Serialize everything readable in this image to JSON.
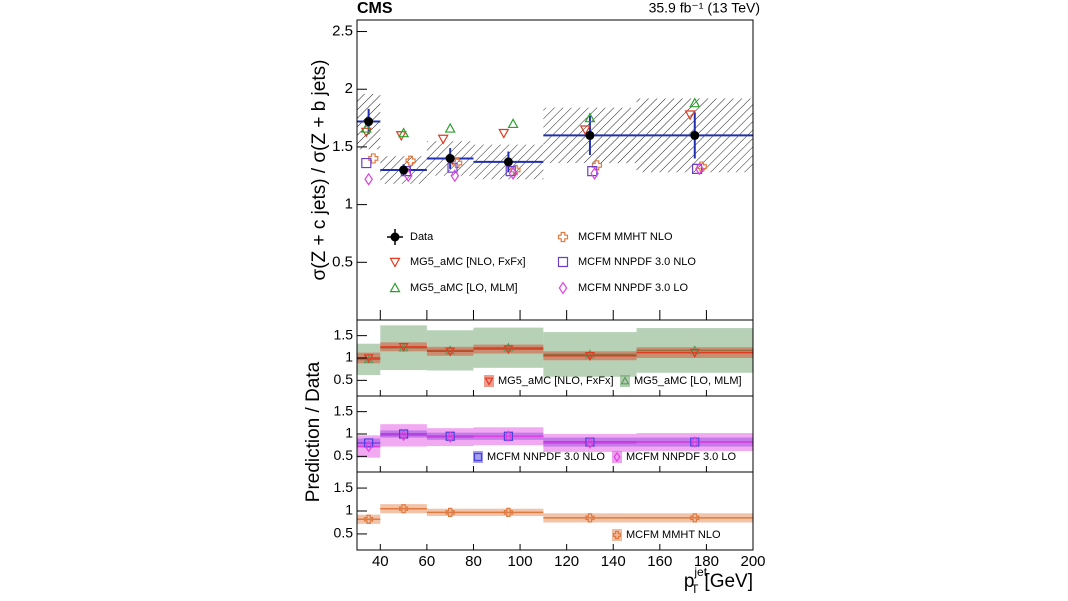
{
  "chart_data": [
    {
      "type": "step",
      "title": "CMS",
      "subtitle": "35.9 fb⁻¹ (13 TeV)",
      "y_label": "σ(Z + c jets) / σ(Z + b jets)",
      "bins": [
        30,
        40,
        60,
        80,
        110,
        150,
        200
      ],
      "xlim": [
        30,
        200
      ],
      "ylim": [
        0,
        2.6
      ],
      "yticks": [
        0.5,
        1,
        1.5,
        2,
        2.5
      ],
      "data": {
        "name": "Data",
        "color": "#000000",
        "x": [
          35,
          50,
          70,
          95,
          130,
          175
        ],
        "values": [
          1.72,
          1.3,
          1.4,
          1.37,
          1.6,
          1.6
        ],
        "errors": [
          0.11,
          0.05,
          0.09,
          0.09,
          0.17,
          0.2
        ],
        "syst_errors": [
          0.24,
          0.12,
          0.15,
          0.15,
          0.24,
          0.32
        ]
      },
      "series": [
        {
          "name": "MG5_aMC [NLO, FxFx]",
          "color": "#e03a20",
          "marker": "triangle-down",
          "x": [
            34,
            49,
            67,
            93,
            128,
            173
          ],
          "values": [
            1.63,
            1.6,
            1.57,
            1.62,
            1.65,
            1.78
          ]
        },
        {
          "name": "MG5_aMC [LO, MLM]",
          "color": "#2ca02c",
          "marker": "triangle-up",
          "x": [
            34,
            50,
            70,
            97,
            130,
            175
          ],
          "values": [
            1.66,
            1.62,
            1.66,
            1.7,
            1.75,
            1.88
          ]
        },
        {
          "name": "MCFM MMHT NLO",
          "color": "#e07a40",
          "marker": "cross",
          "x": [
            37,
            53,
            73,
            98,
            133,
            178
          ],
          "values": [
            1.4,
            1.38,
            1.36,
            1.3,
            1.34,
            1.33
          ]
        },
        {
          "name": "MCFM NNPDF 3.0 NLO",
          "color": "#6a40c8",
          "marker": "square",
          "x": [
            34,
            51,
            71,
            96,
            131,
            176
          ],
          "values": [
            1.36,
            1.29,
            1.32,
            1.29,
            1.29,
            1.31
          ]
        },
        {
          "name": "MCFM NNPDF 3.0 LO",
          "color": "#e040e0",
          "marker": "diamond",
          "x": [
            35,
            52,
            72,
            97,
            132,
            177
          ],
          "values": [
            1.22,
            1.25,
            1.25,
            1.27,
            1.27,
            1.31
          ]
        }
      ]
    },
    {
      "type": "band",
      "ylim": [
        0.15,
        1.85
      ],
      "yticks": [
        0.5,
        1,
        1.5
      ],
      "series": [
        {
          "name": "MG5_aMC [LO, MLM]",
          "color": "#5f9a5f",
          "marker": "triangle-up",
          "x": [
            35,
            50,
            70,
            95,
            130,
            175
          ],
          "values": [
            0.97,
            1.23,
            1.17,
            1.23,
            1.08,
            1.17
          ],
          "errors": [
            0.35,
            0.5,
            0.45,
            0.45,
            0.5,
            0.5
          ]
        },
        {
          "name": "MG5_aMC [NLO, FxFx]",
          "color": "#e03a20",
          "marker": "triangle-down",
          "x": [
            35,
            50,
            70,
            95,
            130,
            175
          ],
          "values": [
            1.0,
            1.25,
            1.15,
            1.2,
            1.05,
            1.12
          ],
          "errors": [
            0.12,
            0.1,
            0.1,
            0.1,
            0.1,
            0.12
          ]
        }
      ]
    },
    {
      "type": "band",
      "y_label": "Prediction / Data",
      "ylim": [
        0.15,
        1.85
      ],
      "yticks": [
        0.5,
        1,
        1.5
      ],
      "series": [
        {
          "name": "MCFM NNPDF 3.0 NLO",
          "color": "#4a40e0",
          "marker": "square",
          "x": [
            35,
            50,
            70,
            95,
            130,
            175
          ],
          "values": [
            0.8,
            1.0,
            0.95,
            0.95,
            0.82,
            0.82
          ],
          "errors": [
            0.1,
            0.08,
            0.08,
            0.08,
            0.1,
            0.1
          ]
        },
        {
          "name": "MCFM NNPDF 3.0 LO",
          "color": "#e040e0",
          "marker": "diamond",
          "x": [
            35,
            50,
            70,
            95,
            130,
            175
          ],
          "values": [
            0.72,
            0.97,
            0.93,
            0.95,
            0.8,
            0.82
          ],
          "errors": [
            0.25,
            0.25,
            0.2,
            0.2,
            0.2,
            0.2
          ]
        }
      ]
    },
    {
      "type": "band",
      "ylim": [
        0.15,
        1.85
      ],
      "yticks": [
        0.5,
        1,
        1.5
      ],
      "xticks": [
        40,
        60,
        80,
        100,
        120,
        140,
        160,
        180,
        200
      ],
      "x_label": {
        "main": "p",
        "sub": "T",
        "sup": "jet",
        "unit": "[GeV]"
      },
      "series": [
        {
          "name": "MCFM MMHT NLO",
          "color": "#e07a40",
          "marker": "cross",
          "x": [
            35,
            50,
            70,
            95,
            130,
            175
          ],
          "values": [
            0.82,
            1.05,
            0.97,
            0.97,
            0.85,
            0.85
          ],
          "errors": [
            0.1,
            0.1,
            0.08,
            0.08,
            0.1,
            0.1
          ]
        }
      ]
    }
  ]
}
